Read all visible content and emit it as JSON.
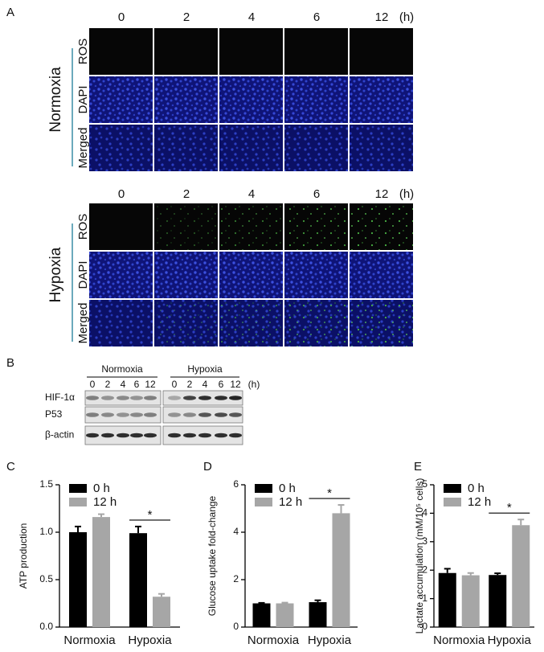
{
  "panel_a": {
    "label": "A",
    "blocks": [
      {
        "condition": "Normoxia",
        "times": [
          "0",
          "2",
          "4",
          "6",
          "12"
        ],
        "unit": "(h)",
        "rows": [
          "ROS",
          "DAPI",
          "Merged"
        ]
      },
      {
        "condition": "Hypoxia",
        "times": [
          "0",
          "2",
          "4",
          "6",
          "12"
        ],
        "unit": "(h)",
        "rows": [
          "ROS",
          "DAPI",
          "Merged"
        ]
      }
    ]
  },
  "panel_b": {
    "label": "B",
    "groups": [
      {
        "name": "Normoxia",
        "lanes": [
          "0",
          "2",
          "4",
          "6",
          "12"
        ]
      },
      {
        "name": "Hypoxia",
        "lanes": [
          "0",
          "2",
          "4",
          "6",
          "12"
        ]
      }
    ],
    "unit": "(h)",
    "proteins": [
      "HIF-1α",
      "P53",
      "β-actin"
    ]
  },
  "chart_data": [
    {
      "panel_label": "C",
      "type": "bar",
      "y_label": "ATP production",
      "categories": [
        "Normoxia",
        "Hypoxia"
      ],
      "series": [
        {
          "name": "0 h",
          "color": "#000000",
          "values": [
            1.0,
            0.99
          ],
          "errors": [
            0.06,
            0.07
          ]
        },
        {
          "name": "12 h",
          "color": "#a6a6a6",
          "values": [
            1.16,
            0.32
          ],
          "errors": [
            0.03,
            0.03
          ]
        }
      ],
      "ylim": [
        0,
        1.5
      ],
      "yticks": [
        {
          "value": 0,
          "label": "0.0"
        },
        0.5,
        {
          "value": 1,
          "label": "1.0"
        },
        1.5
      ],
      "annotations": [
        "*"
      ]
    },
    {
      "panel_label": "D",
      "type": "bar",
      "y_label": "Glucose uptake fold-change",
      "categories": [
        "Normoxia",
        "Hypoxia"
      ],
      "series": [
        {
          "name": "0 h",
          "color": "#000000",
          "values": [
            1.0,
            1.05
          ],
          "errors": [
            0.02,
            0.08
          ]
        },
        {
          "name": "12 h",
          "color": "#a6a6a6",
          "values": [
            1.0,
            4.8
          ],
          "errors": [
            0.03,
            0.35
          ]
        }
      ],
      "ylim": [
        0,
        6
      ],
      "yticks": [
        0,
        2,
        4,
        6
      ],
      "annotations": [
        "*"
      ]
    },
    {
      "panel_label": "E",
      "type": "bar",
      "y_label": "Lactate accumulation (mM/10⁵ cells)",
      "categories": [
        "Normoxia",
        "Hypoxia"
      ],
      "series": [
        {
          "name": "0 h",
          "color": "#000000",
          "values": [
            1.9,
            1.83
          ],
          "errors": [
            0.15,
            0.06
          ]
        },
        {
          "name": "12 h",
          "color": "#a6a6a6",
          "values": [
            1.82,
            3.58
          ],
          "errors": [
            0.08,
            0.2
          ]
        }
      ],
      "ylim": [
        0,
        5
      ],
      "yticks": [
        0,
        1,
        2,
        3,
        4,
        5
      ],
      "annotations": [
        "*"
      ]
    }
  ]
}
